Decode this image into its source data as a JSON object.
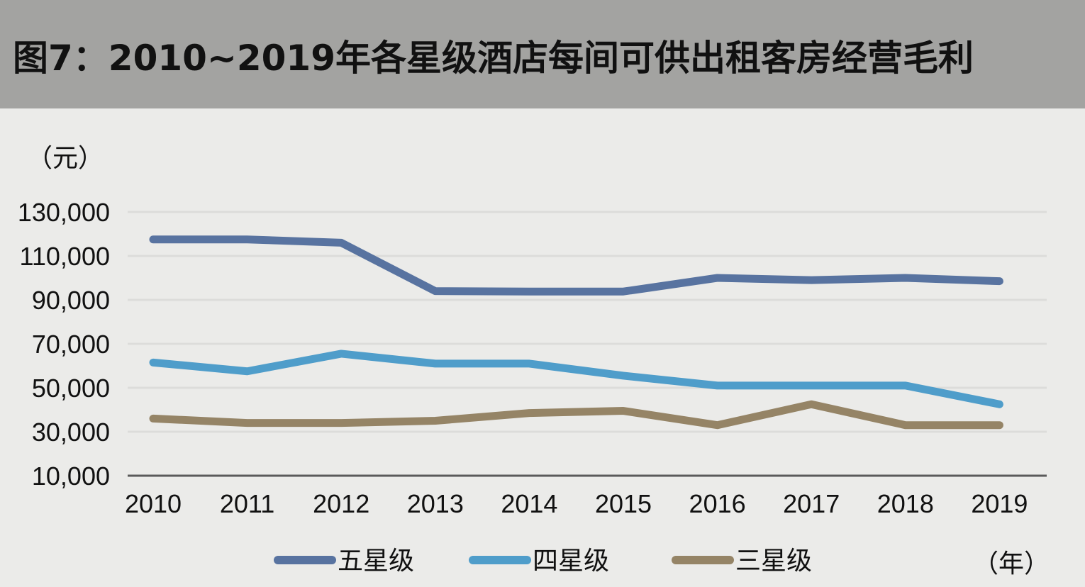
{
  "header": {
    "title": "图7：2010~2019年各星级酒店每间可供出租客房经营毛利"
  },
  "chart_data": {
    "type": "line",
    "title": "图7：2010~2019年各星级酒店每间可供出租客房经营毛利",
    "ylabel": "（元）",
    "xlabel": "（年）",
    "ylim": [
      10000,
      130000
    ],
    "y_ticks": [
      "130,000",
      "110,000",
      "90,000",
      "70,000",
      "50,000",
      "30,000",
      "10,000"
    ],
    "y_tick_values": [
      130000,
      110000,
      90000,
      70000,
      50000,
      30000,
      10000
    ],
    "categories": [
      "2010",
      "2011",
      "2012",
      "2013",
      "2014",
      "2015",
      "2016",
      "2017",
      "2018",
      "2019"
    ],
    "grid": true,
    "legend_position": "bottom",
    "series": [
      {
        "name": "五星级",
        "color": "#5873a0",
        "values": [
          117500,
          117500,
          116000,
          94000,
          93800,
          93800,
          100000,
          99000,
          100000,
          98500
        ]
      },
      {
        "name": "四星级",
        "color": "#4f9dca",
        "values": [
          61500,
          57500,
          65500,
          61000,
          61000,
          55500,
          51000,
          51000,
          51000,
          42500
        ]
      },
      {
        "name": "三星级",
        "color": "#958466",
        "values": [
          36000,
          34000,
          34000,
          35000,
          38500,
          39500,
          33000,
          42500,
          33000,
          33000
        ]
      }
    ]
  }
}
